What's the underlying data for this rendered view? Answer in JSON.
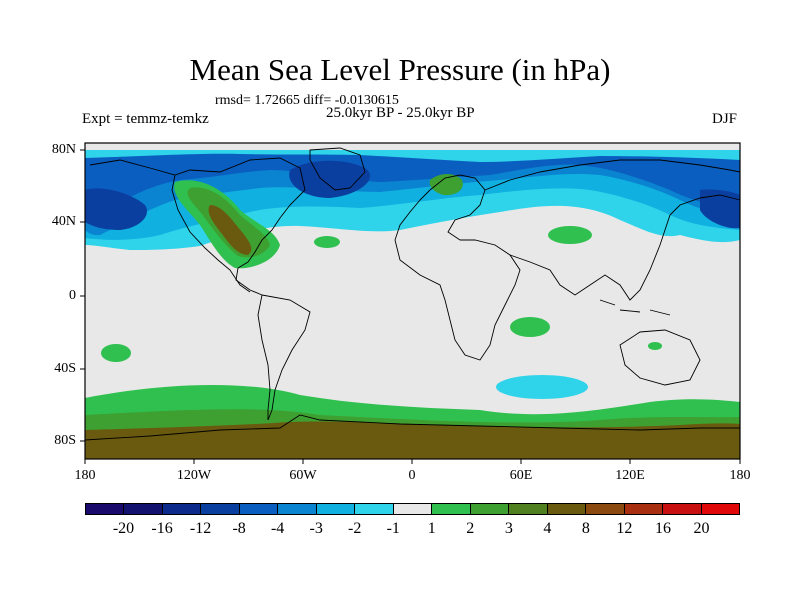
{
  "header": {
    "title": "Mean Sea Level Pressure (in hPa)",
    "stats": "rmsd= 1.72665 diff= -0.0130615",
    "experiment": "Expt = temmz-temkz",
    "period": "25.0kyr BP - 25.0kyr BP",
    "season": "DJF"
  },
  "axes": {
    "y_ticks": [
      "80N",
      "40N",
      "0",
      "40S",
      "80S"
    ],
    "x_ticks": [
      "180",
      "120W",
      "60W",
      "0",
      "60E",
      "120E",
      "180"
    ]
  },
  "colorbar": {
    "labels": [
      "-20",
      "-16",
      "-12",
      "-8",
      "-4",
      "-3",
      "-2",
      "-1",
      "1",
      "2",
      "3",
      "4",
      "8",
      "12",
      "16",
      "20"
    ],
    "colors": [
      "#1a0a6b",
      "#13136f",
      "#0c2a8c",
      "#0a3fa0",
      "#0a5ec0",
      "#0a84d0",
      "#10b0e0",
      "#30d4ea",
      "#e8e8e8",
      "#30c050",
      "#3ea030",
      "#508020",
      "#6a5a10",
      "#8a4a10",
      "#a83010",
      "#c81010",
      "#e00808"
    ]
  },
  "map": {
    "background_color": "#e8e8e8",
    "land_line_color": "#000000"
  }
}
